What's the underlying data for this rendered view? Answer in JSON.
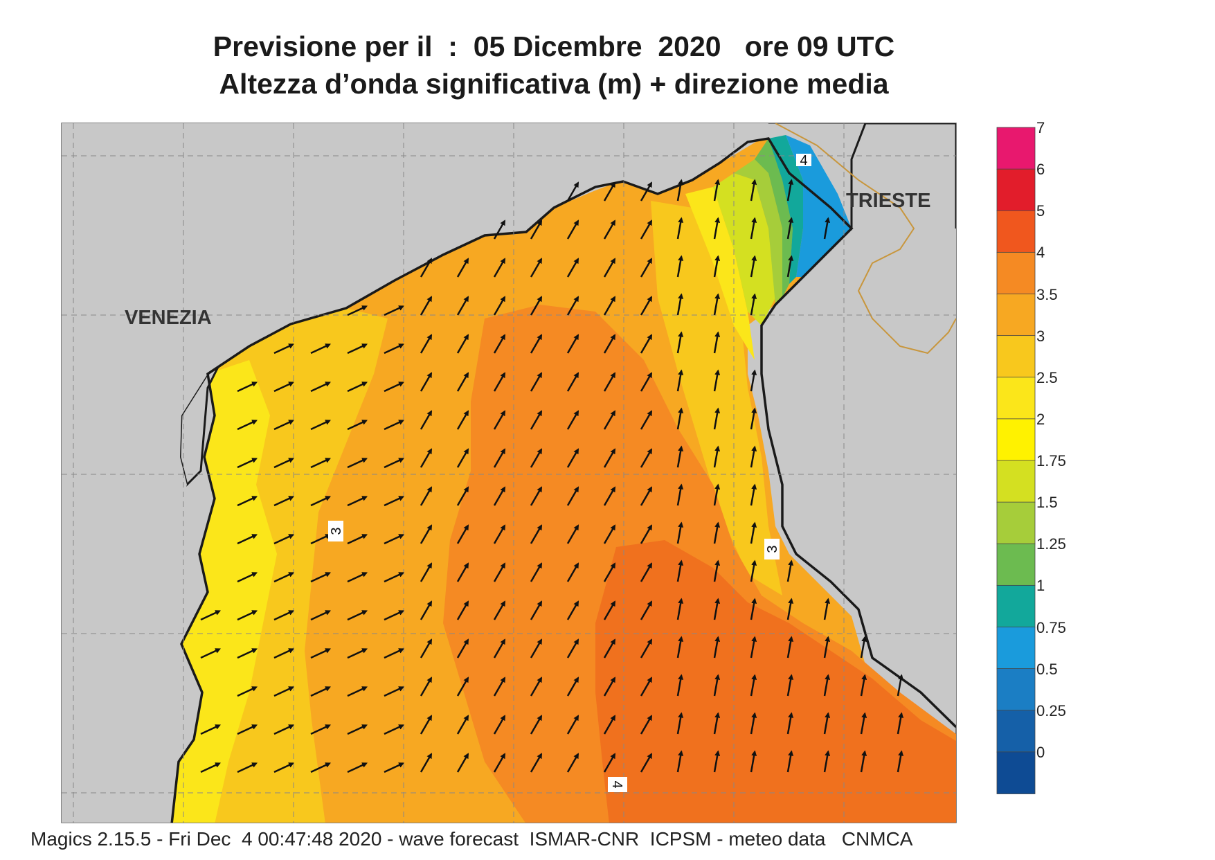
{
  "title": {
    "line1": "Previsione per il  :  05 Dicembre  2020   ore 09 UTC",
    "line2": "Altezza d’onda significativa (m) + direzione media"
  },
  "places": {
    "venezia": "VENEZIA",
    "trieste": "TRIESTE"
  },
  "contour_labels": [
    "3",
    "3",
    "4",
    "4"
  ],
  "colorbar": {
    "ticks": [
      "7",
      "6",
      "5",
      "4",
      "3.5",
      "3",
      "2.5",
      "2",
      "1.75",
      "1.5",
      "1.25",
      "1",
      "0.75",
      "0.5",
      "0.25",
      "0"
    ],
    "colors": [
      "#e8186e",
      "#e21d2b",
      "#f0571e",
      "#f58a23",
      "#f7a822",
      "#f8c81d",
      "#fbe61a",
      "#fff200",
      "#d4e021",
      "#a6cd3a",
      "#6cbb50",
      "#12a89b",
      "#1a9bdc",
      "#1b7ec4",
      "#1560a8",
      "#0e4b94"
    ]
  },
  "footer": "Magics 2.15.5 - Fri Dec  4 00:47:48 2020 - wave forecast  ISMAR-CNR  ICPSM - meteo data   CNMCA"
}
